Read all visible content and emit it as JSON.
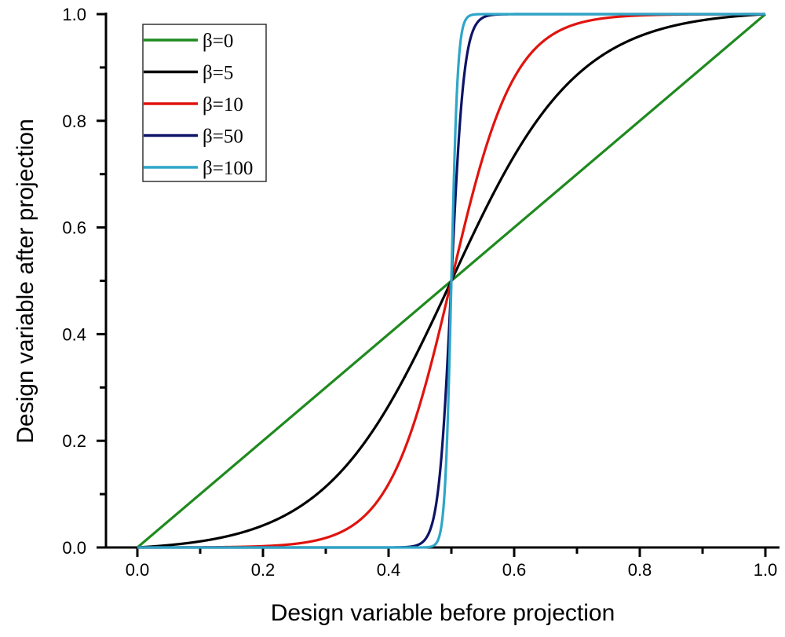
{
  "chart_data": {
    "type": "line",
    "title": "",
    "xlabel": "Design variable before projection",
    "ylabel": "Design variable after projection",
    "xlim": [
      0,
      1
    ],
    "ylim": [
      0,
      1
    ],
    "xticks": [
      "0.0",
      "0.2",
      "0.4",
      "0.6",
      "0.8",
      "1.0"
    ],
    "yticks": [
      "0.0",
      "0.2",
      "0.4",
      "0.6",
      "0.8",
      "1.0"
    ],
    "grid": false,
    "legend_position": "top-left",
    "curve": "Heaviside projection (tanh(beta*eta)+tanh(beta*(x-eta)))/(tanh(beta*eta)+tanh(beta*(1-eta)))",
    "eta": 0.5,
    "series": [
      {
        "name": "β=0",
        "beta": 0,
        "color": "#1f8a1f"
      },
      {
        "name": "β=5",
        "beta": 5,
        "color": "#000000"
      },
      {
        "name": "β=10",
        "beta": 10,
        "color": "#e0140e"
      },
      {
        "name": "β=50",
        "beta": 50,
        "color": "#0d1466"
      },
      {
        "name": "β=100",
        "beta": 100,
        "color": "#2ea6c8"
      }
    ]
  }
}
